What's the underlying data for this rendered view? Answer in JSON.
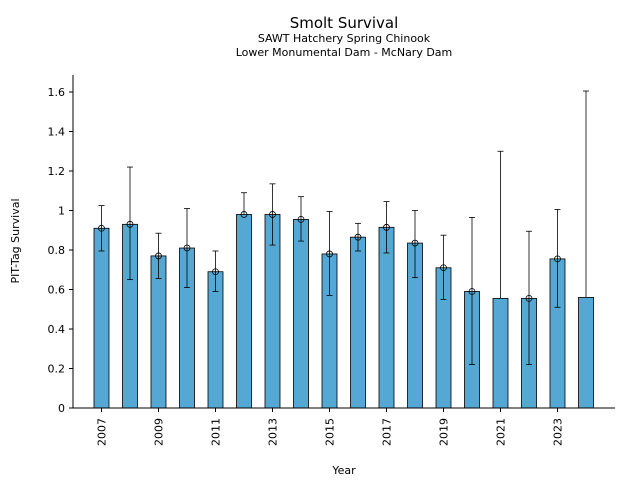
{
  "chart_data": {
    "type": "bar",
    "title": "Smolt Survival",
    "subtitle_lines": [
      "SAWT Hatchery Spring Chinook",
      "Lower Monumental Dam - McNary Dam"
    ],
    "xlabel": "Year",
    "ylabel": "PIT-Tag Survival",
    "ylim": [
      0,
      1.68
    ],
    "yticks": [
      0,
      0.2,
      0.4,
      0.6,
      0.8,
      1,
      1.2,
      1.4,
      1.6
    ],
    "ytick_labels": [
      "0",
      "0.2",
      "0.4",
      "0.6",
      "0.8",
      "1",
      "1.2",
      "1.4",
      "1.6"
    ],
    "xtick_labels": [
      "2007",
      "2009",
      "2011",
      "2013",
      "2015",
      "2017",
      "2019",
      "2021",
      "2023"
    ],
    "bar_color": "#56a8d4",
    "years": [
      2007,
      2008,
      2009,
      2010,
      2011,
      2012,
      2013,
      2014,
      2015,
      2016,
      2017,
      2018,
      2019,
      2020,
      2021,
      2022,
      2023,
      2024
    ],
    "values": [
      0.91,
      0.93,
      0.77,
      0.81,
      0.69,
      0.98,
      0.98,
      0.955,
      0.78,
      0.865,
      0.915,
      0.835,
      0.71,
      0.59,
      0.555,
      0.555,
      0.755,
      0.56
    ],
    "lower": [
      0.795,
      0.65,
      0.655,
      0.61,
      0.59,
      null,
      0.825,
      0.845,
      0.57,
      0.795,
      0.785,
      0.66,
      0.55,
      0.22,
      null,
      0.22,
      0.51,
      null
    ],
    "upper": [
      1.025,
      1.22,
      0.885,
      1.01,
      0.795,
      1.09,
      1.135,
      1.07,
      0.995,
      0.935,
      1.045,
      1.0,
      0.875,
      0.965,
      1.3,
      0.895,
      1.005,
      1.605
    ],
    "marker": [
      true,
      true,
      true,
      true,
      true,
      true,
      true,
      true,
      true,
      true,
      true,
      true,
      true,
      true,
      false,
      true,
      true,
      false
    ]
  }
}
